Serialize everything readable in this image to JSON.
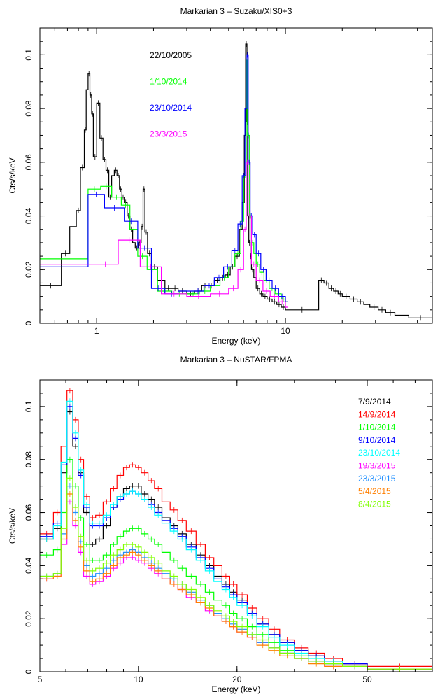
{
  "chart_data": [
    {
      "type": "line",
      "title": "Markarian 3 – Suzaku/XIS0+3",
      "xlabel": "Energy (keV)",
      "ylabel": "Cts/s/keV",
      "xscale": "log",
      "xlim": [
        0.5,
        60
      ],
      "ylim": [
        0,
        0.11
      ],
      "xticks": [
        {
          "v": 1,
          "label": "1"
        },
        {
          "v": 10,
          "label": "10"
        }
      ],
      "yticks": [
        {
          "v": 0,
          "label": "0"
        },
        {
          "v": 0.02,
          "label": "0.02"
        },
        {
          "v": 0.04,
          "label": "0.04"
        },
        {
          "v": 0.06,
          "label": "0.06"
        },
        {
          "v": 0.08,
          "label": "0.08"
        },
        {
          "v": 0.1,
          "label": "0.1"
        }
      ],
      "legend_position": "top-left inside",
      "series": [
        {
          "name": "22/10/2005",
          "color": "#000000",
          "x": [
            0.5,
            0.65,
            0.72,
            0.78,
            0.82,
            0.86,
            0.88,
            0.9,
            0.92,
            0.94,
            0.96,
            1.0,
            1.04,
            1.08,
            1.12,
            1.16,
            1.2,
            1.24,
            1.28,
            1.32,
            1.36,
            1.4,
            1.45,
            1.5,
            1.55,
            1.6,
            1.66,
            1.72,
            1.76,
            1.8,
            1.86,
            1.95,
            2.1,
            2.3,
            2.5,
            2.7,
            3.0,
            3.3,
            3.6,
            3.9,
            4.2,
            4.5,
            4.8,
            5.1,
            5.4,
            5.7,
            5.9,
            6.05,
            6.15,
            6.25,
            6.3,
            6.4,
            6.5,
            6.6,
            6.8,
            7.0,
            7.3,
            7.6,
            8.0,
            8.5,
            9.0,
            9.5,
            10.0,
            15.0,
            16.0,
            17.0,
            18.0,
            19.0,
            20.0,
            22.0,
            24.0,
            26.0,
            28.0,
            31.0,
            34.0,
            38.0,
            45.0,
            60.0
          ],
          "y": [
            0.014,
            0.026,
            0.036,
            0.042,
            0.058,
            0.072,
            0.087,
            0.093,
            0.085,
            0.078,
            0.062,
            0.082,
            0.069,
            0.061,
            0.057,
            0.047,
            0.055,
            0.057,
            0.055,
            0.05,
            0.047,
            0.045,
            0.04,
            0.035,
            0.03,
            0.028,
            0.03,
            0.036,
            0.05,
            0.034,
            0.026,
            0.021,
            0.016,
            0.013,
            0.013,
            0.012,
            0.011,
            0.012,
            0.014,
            0.014,
            0.016,
            0.017,
            0.018,
            0.021,
            0.025,
            0.035,
            0.045,
            0.07,
            0.104,
            0.075,
            0.04,
            0.03,
            0.025,
            0.02,
            0.017,
            0.013,
            0.011,
            0.01,
            0.009,
            0.008,
            0.007,
            0.006,
            0.005,
            0.016,
            0.015,
            0.013,
            0.012,
            0.011,
            0.01,
            0.009,
            0.008,
            0.007,
            0.006,
            0.005,
            0.004,
            0.003,
            0.002,
            0.002
          ]
        },
        {
          "name": "1/10/2014",
          "color": "#00ff00",
          "x": [
            0.5,
            0.9,
            1.05,
            1.2,
            1.35,
            1.5,
            1.65,
            1.85,
            2.1,
            2.5,
            3.0,
            3.5,
            4.0,
            4.5,
            5.0,
            5.4,
            5.8,
            6.0,
            6.2,
            6.3,
            6.45,
            6.6,
            6.8,
            7.0,
            7.3,
            7.7,
            8.2,
            8.8,
            9.5,
            10.0
          ],
          "y": [
            0.024,
            0.05,
            0.051,
            0.047,
            0.044,
            0.035,
            0.025,
            0.02,
            0.012,
            0.011,
            0.011,
            0.012,
            0.014,
            0.017,
            0.021,
            0.026,
            0.038,
            0.055,
            0.098,
            0.07,
            0.04,
            0.03,
            0.026,
            0.022,
            0.019,
            0.016,
            0.013,
            0.011,
            0.009,
            0.008
          ]
        },
        {
          "name": "23/10/2014",
          "color": "#0000ff",
          "x": [
            0.5,
            0.9,
            1.1,
            1.4,
            1.65,
            1.95,
            2.3,
            2.7,
            3.2,
            3.7,
            4.2,
            4.7,
            5.2,
            5.6,
            5.9,
            6.1,
            6.25,
            6.35,
            6.5,
            6.7,
            7.0,
            7.4,
            7.9,
            8.5,
            9.2,
            10.0
          ],
          "y": [
            0.021,
            0.048,
            0.043,
            0.038,
            0.028,
            0.013,
            0.011,
            0.012,
            0.012,
            0.014,
            0.017,
            0.021,
            0.027,
            0.037,
            0.055,
            0.08,
            0.1,
            0.06,
            0.04,
            0.033,
            0.026,
            0.02,
            0.016,
            0.013,
            0.01,
            0.008
          ]
        },
        {
          "name": "23/3/2015",
          "color": "#ff00ff",
          "x": [
            0.5,
            0.95,
            1.3,
            1.7,
            2.2,
            3.0,
            4.0,
            5.0,
            5.6,
            6.0,
            6.2,
            6.35,
            6.6,
            7.0,
            7.6,
            8.3,
            9.2,
            10.0
          ],
          "y": [
            0.022,
            0.022,
            0.031,
            0.021,
            0.011,
            0.01,
            0.011,
            0.013,
            0.02,
            0.035,
            0.06,
            0.04,
            0.022,
            0.016,
            0.012,
            0.01,
            0.008,
            0.006
          ]
        }
      ]
    },
    {
      "type": "line",
      "title": "Markarian 3 – NuSTAR/FPMA",
      "xlabel": "Energy (keV)",
      "ylabel": "Cts/s/keV",
      "xscale": "log",
      "xlim": [
        5,
        79
      ],
      "ylim": [
        0,
        0.11
      ],
      "xticks": [
        {
          "v": 5,
          "label": "5"
        },
        {
          "v": 10,
          "label": "10"
        },
        {
          "v": 20,
          "label": "20"
        },
        {
          "v": 50,
          "label": "50"
        }
      ],
      "yticks": [
        {
          "v": 0,
          "label": "0"
        },
        {
          "v": 0.02,
          "label": "0.02"
        },
        {
          "v": 0.04,
          "label": "0.04"
        },
        {
          "v": 0.06,
          "label": "0.06"
        },
        {
          "v": 0.08,
          "label": "0.08"
        },
        {
          "v": 0.1,
          "label": "0.1"
        }
      ],
      "legend_position": "top-right inside",
      "x": [
        5.0,
        5.5,
        5.8,
        6.05,
        6.3,
        6.55,
        6.8,
        7.1,
        7.4,
        7.8,
        8.2,
        8.6,
        9.0,
        9.4,
        9.8,
        10.2,
        10.7,
        11.2,
        11.8,
        12.5,
        13.2,
        14.0,
        15.0,
        16.0,
        17.0,
        18.0,
        19.0,
        20.0,
        21.5,
        23.0,
        25.0,
        27.0,
        30.0,
        33.0,
        37.0,
        42.0,
        50.0,
        79.0
      ],
      "series": [
        {
          "name": "7/9/2014",
          "color": "#000000",
          "values": [
            0.05,
            0.054,
            0.075,
            0.098,
            0.085,
            0.075,
            0.06,
            0.048,
            0.05,
            0.055,
            0.062,
            0.066,
            0.069,
            0.07,
            0.07,
            0.067,
            0.065,
            0.062,
            0.058,
            0.055,
            0.052,
            0.048,
            0.044,
            0.04,
            0.036,
            0.033,
            0.03,
            0.027,
            0.022,
            0.018,
            0.014,
            0.011,
            0.008,
            0.006,
            0.004,
            0.003,
            0.001,
            0.001
          ]
        },
        {
          "name": "14/9/2014",
          "color": "#ff0000",
          "values": [
            0.052,
            0.06,
            0.085,
            0.106,
            0.095,
            0.08,
            0.066,
            0.058,
            0.059,
            0.064,
            0.069,
            0.074,
            0.077,
            0.078,
            0.077,
            0.075,
            0.072,
            0.069,
            0.064,
            0.061,
            0.057,
            0.053,
            0.048,
            0.043,
            0.04,
            0.036,
            0.033,
            0.029,
            0.024,
            0.02,
            0.016,
            0.012,
            0.009,
            0.007,
            0.005,
            0.003,
            0.002,
            0.001
          ]
        },
        {
          "name": "1/10/2014",
          "color": "#00ff00",
          "values": [
            0.044,
            0.046,
            0.06,
            0.08,
            0.07,
            0.058,
            0.048,
            0.042,
            0.042,
            0.044,
            0.048,
            0.051,
            0.053,
            0.054,
            0.054,
            0.052,
            0.05,
            0.048,
            0.045,
            0.042,
            0.039,
            0.036,
            0.033,
            0.03,
            0.027,
            0.025,
            0.022,
            0.02,
            0.017,
            0.014,
            0.011,
            0.008,
            0.006,
            0.004,
            0.003,
            0.002,
            0.001,
            0.001
          ]
        },
        {
          "name": "9/10/2014",
          "color": "#0000ff",
          "values": [
            0.051,
            0.056,
            0.078,
            0.1,
            0.088,
            0.074,
            0.062,
            0.055,
            0.055,
            0.058,
            0.062,
            0.065,
            0.067,
            0.068,
            0.067,
            0.065,
            0.063,
            0.06,
            0.057,
            0.054,
            0.051,
            0.047,
            0.043,
            0.039,
            0.035,
            0.032,
            0.029,
            0.026,
            0.022,
            0.018,
            0.014,
            0.011,
            0.008,
            0.006,
            0.004,
            0.003,
            0.001,
            0.001
          ]
        },
        {
          "name": "23/10/2014",
          "color": "#00ffff",
          "values": [
            0.05,
            0.055,
            0.079,
            0.102,
            0.09,
            0.076,
            0.063,
            0.056,
            0.056,
            0.059,
            0.063,
            0.066,
            0.067,
            0.068,
            0.067,
            0.065,
            0.062,
            0.059,
            0.056,
            0.053,
            0.05,
            0.046,
            0.042,
            0.038,
            0.034,
            0.031,
            0.028,
            0.025,
            0.021,
            0.017,
            0.013,
            0.01,
            0.007,
            0.005,
            0.004,
            0.002,
            0.001,
            0.001
          ]
        },
        {
          "name": "19/3/2015",
          "color": "#ff00ff",
          "values": [
            0.035,
            0.036,
            0.048,
            0.064,
            0.055,
            0.045,
            0.036,
            0.033,
            0.034,
            0.036,
            0.039,
            0.041,
            0.043,
            0.043,
            0.042,
            0.041,
            0.039,
            0.037,
            0.035,
            0.033,
            0.031,
            0.028,
            0.026,
            0.023,
            0.021,
            0.019,
            0.017,
            0.015,
            0.013,
            0.011,
            0.009,
            0.007,
            0.005,
            0.004,
            0.002,
            0.002,
            0.001,
            0.001
          ]
        },
        {
          "name": "23/3/2015",
          "color": "#1f8fff",
          "values": [
            0.036,
            0.037,
            0.052,
            0.07,
            0.06,
            0.049,
            0.04,
            0.036,
            0.037,
            0.039,
            0.042,
            0.044,
            0.045,
            0.046,
            0.045,
            0.043,
            0.041,
            0.039,
            0.037,
            0.035,
            0.033,
            0.03,
            0.027,
            0.025,
            0.022,
            0.02,
            0.018,
            0.016,
            0.014,
            0.011,
            0.009,
            0.007,
            0.005,
            0.004,
            0.003,
            0.002,
            0.001,
            0.001
          ]
        },
        {
          "name": "5/4/2015",
          "color": "#ff7f00",
          "values": [
            0.035,
            0.036,
            0.05,
            0.067,
            0.057,
            0.047,
            0.038,
            0.034,
            0.035,
            0.037,
            0.04,
            0.043,
            0.044,
            0.045,
            0.044,
            0.042,
            0.04,
            0.038,
            0.035,
            0.033,
            0.031,
            0.029,
            0.026,
            0.024,
            0.021,
            0.019,
            0.017,
            0.015,
            0.013,
            0.01,
            0.008,
            0.006,
            0.005,
            0.003,
            0.002,
            0.002,
            0.001,
            0.001
          ]
        },
        {
          "name": "8/4/2015",
          "color": "#7fff00",
          "values": [
            0.036,
            0.037,
            0.054,
            0.073,
            0.062,
            0.051,
            0.042,
            0.038,
            0.039,
            0.041,
            0.044,
            0.046,
            0.048,
            0.048,
            0.047,
            0.045,
            0.043,
            0.041,
            0.038,
            0.036,
            0.033,
            0.031,
            0.028,
            0.025,
            0.023,
            0.021,
            0.019,
            0.017,
            0.014,
            0.012,
            0.009,
            0.007,
            0.005,
            0.004,
            0.003,
            0.002,
            0.001,
            0.001
          ]
        }
      ]
    }
  ]
}
